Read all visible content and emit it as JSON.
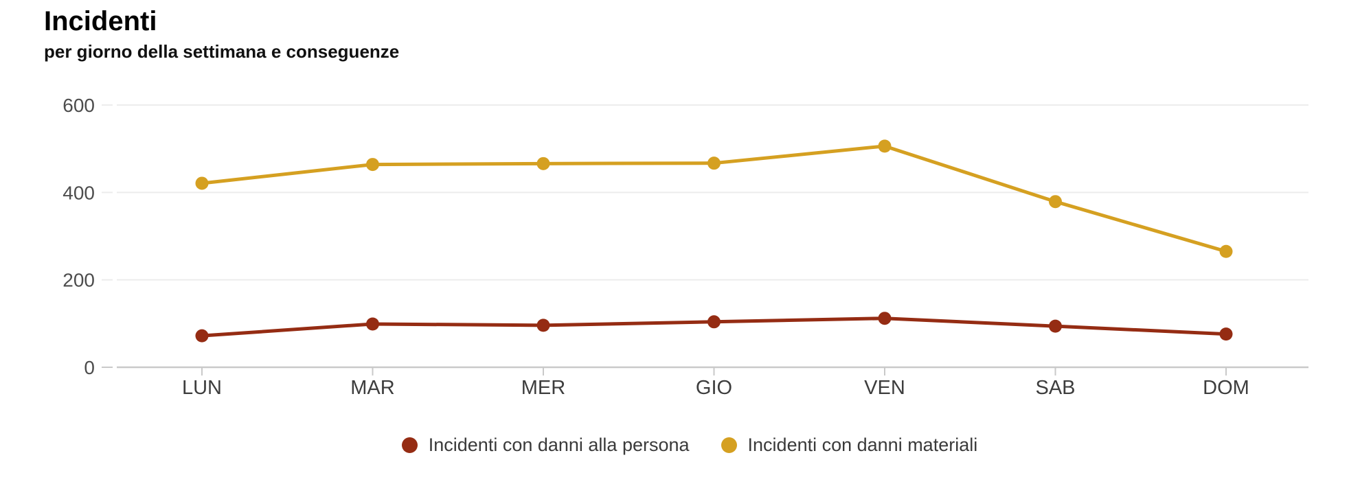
{
  "header": {
    "title": "Incidenti",
    "subtitle": "per giorno della settimana e conseguenze"
  },
  "chart_data": {
    "type": "line",
    "title": "Incidenti",
    "subtitle": "per giorno della settimana e conseguenze",
    "categories": [
      "LUN",
      "MAR",
      "MER",
      "GIO",
      "VEN",
      "SAB",
      "DOM"
    ],
    "series": [
      {
        "name": "Incidenti con danni alla persona",
        "color": "#952c13",
        "values": [
          72,
          99,
          96,
          104,
          112,
          94,
          76
        ]
      },
      {
        "name": "Incidenti con danni materiali",
        "color": "#d5a021",
        "values": [
          421,
          464,
          466,
          467,
          506,
          379,
          265
        ]
      }
    ],
    "xlabel": "",
    "ylabel": "",
    "ylim": [
      0,
      600
    ],
    "yticks": [
      0,
      200,
      400,
      600
    ],
    "grid": true,
    "legend_position": "bottom"
  },
  "style_colors": {
    "gridline": "#ececec",
    "axis_line": "#c9c9c9",
    "y_tick_label": "#4d4d4d",
    "x_tick_label": "#3d3d3d"
  }
}
